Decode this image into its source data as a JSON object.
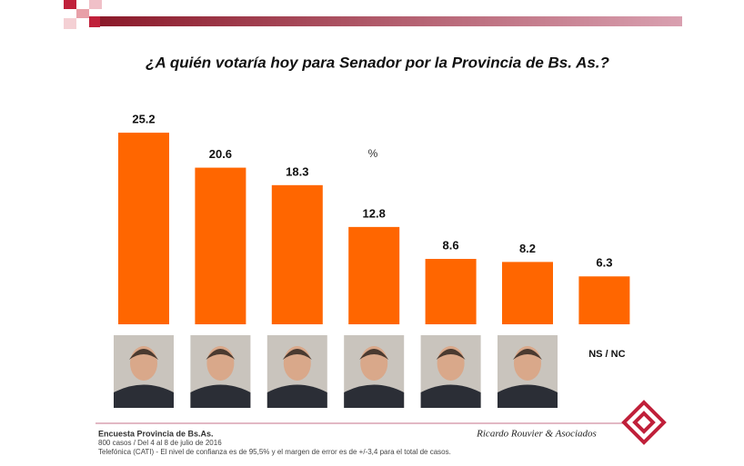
{
  "chart_data": {
    "type": "bar",
    "title": "¿A quién votaría hoy para Senador por la Provincia de Bs. As.?",
    "annotation": "%",
    "categories": [
      null,
      null,
      null,
      null,
      null,
      null,
      "NS / NC"
    ],
    "values": [
      25.2,
      20.6,
      18.3,
      12.8,
      8.6,
      8.2,
      6.3
    ],
    "color": "#ff6600"
  },
  "footer": {
    "survey": "Encuesta Provincia de Bs.As.",
    "sample": "800 casos / Del 4 al 8 de julio de 2016",
    "method": "Telefónica (CATI) - El nivel de confianza es de 95,5% y el margen de error es de +/-3,4 para el total de casos.",
    "brand": "Ricardo Rouvier & Asociados"
  }
}
